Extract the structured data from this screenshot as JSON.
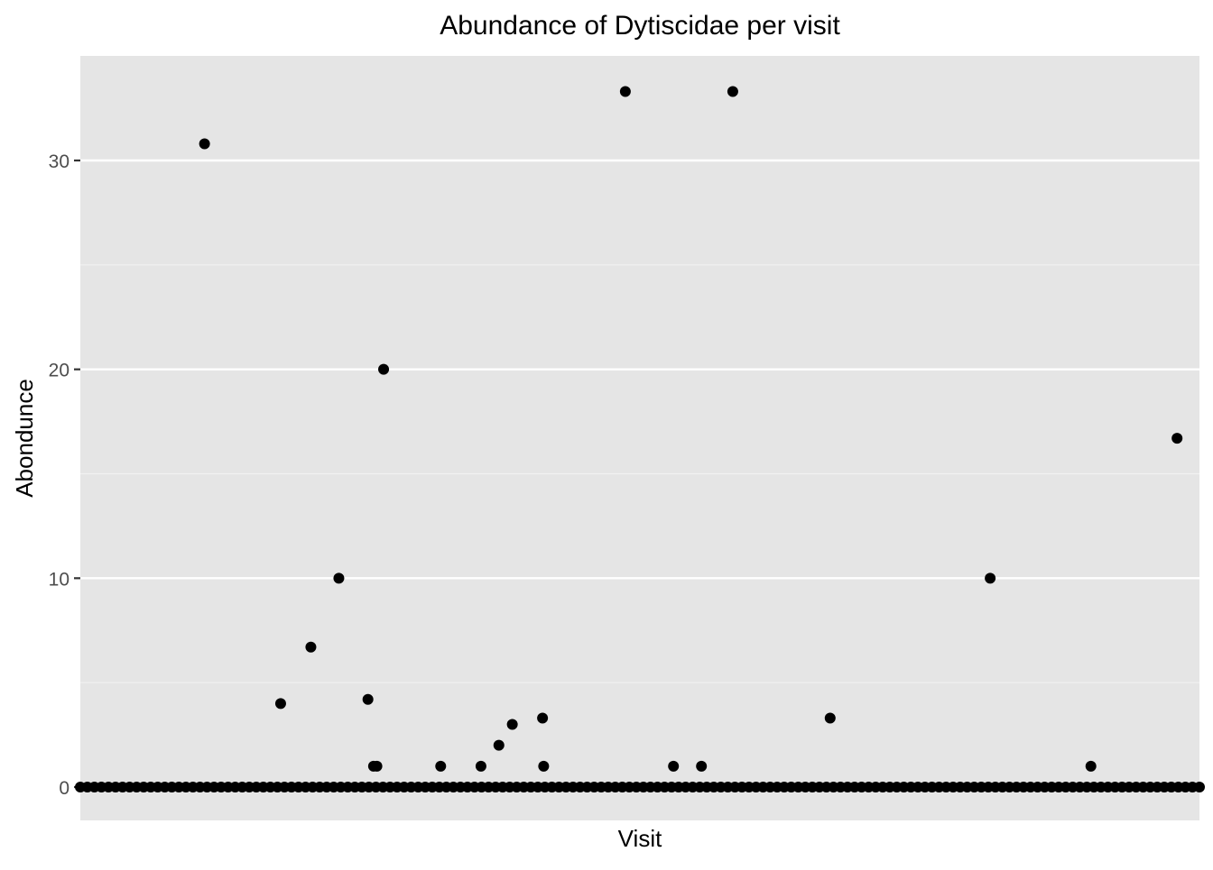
{
  "chart_data": {
    "type": "scatter",
    "title": "Abundance of Dytiscidae per visit",
    "xlabel": "Visit",
    "ylabel": "Abondunce",
    "ylim": [
      -1.5,
      35.0
    ],
    "xlim": [
      0,
      100
    ],
    "y_ticks": [
      {
        "value": 0,
        "label": "0"
      },
      {
        "value": 10,
        "label": "10"
      },
      {
        "value": 20,
        "label": "20"
      },
      {
        "value": 30,
        "label": "30"
      }
    ],
    "y_minor_grid": [
      5,
      15,
      25
    ],
    "grid": true,
    "legend": "none",
    "series": [
      {
        "name": "Abundance",
        "points": [
          {
            "x": 11.1,
            "y": 30.8
          },
          {
            "x": 17.9,
            "y": 4.0
          },
          {
            "x": 20.6,
            "y": 6.7
          },
          {
            "x": 23.1,
            "y": 10.0
          },
          {
            "x": 25.7,
            "y": 4.2
          },
          {
            "x": 26.2,
            "y": 1.0
          },
          {
            "x": 26.5,
            "y": 1.0
          },
          {
            "x": 27.1,
            "y": 20.0
          },
          {
            "x": 32.2,
            "y": 1.0
          },
          {
            "x": 35.8,
            "y": 1.0
          },
          {
            "x": 37.4,
            "y": 2.0
          },
          {
            "x": 38.6,
            "y": 3.0
          },
          {
            "x": 41.3,
            "y": 3.3
          },
          {
            "x": 41.4,
            "y": 1.0
          },
          {
            "x": 48.7,
            "y": 33.3
          },
          {
            "x": 53.0,
            "y": 1.0
          },
          {
            "x": 55.5,
            "y": 1.0
          },
          {
            "x": 58.3,
            "y": 33.3
          },
          {
            "x": 67.0,
            "y": 3.3
          },
          {
            "x": 81.3,
            "y": 10.0
          },
          {
            "x": 90.3,
            "y": 1.0
          },
          {
            "x": 98.0,
            "y": 16.7
          }
        ],
        "zero_points_x_range": [
          0,
          100
        ],
        "zero_points_count": 160,
        "zero_value": 0
      }
    ]
  }
}
